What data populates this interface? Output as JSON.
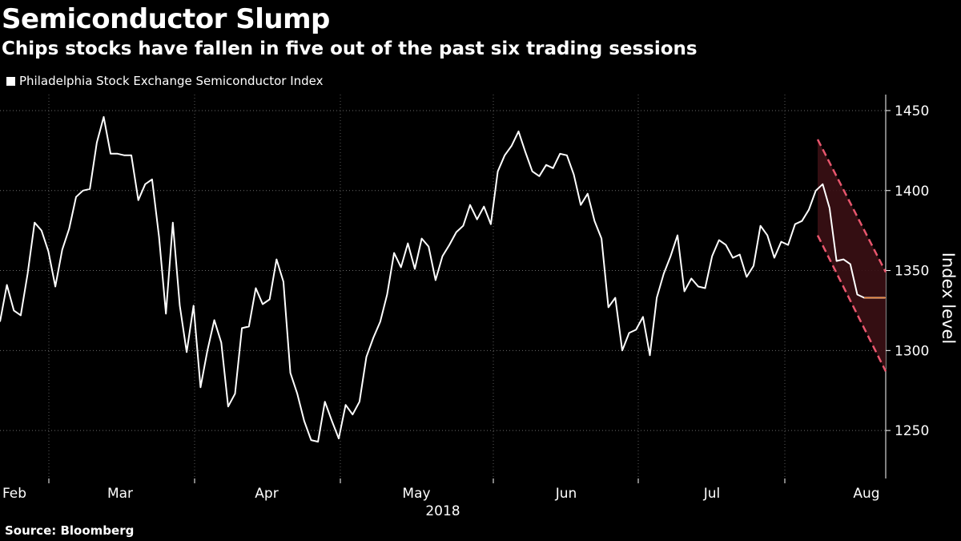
{
  "chart_data": {
    "type": "line",
    "title": "Semiconductor Slump",
    "subtitle": "Chips stocks have fallen in five out of the past six trading sessions",
    "legend": [
      "Philadelphia Stock Exchange Semiconductor Index"
    ],
    "ylabel": "Index level",
    "xlabel": "2018",
    "ylim": [
      1220,
      1460
    ],
    "yticks": [
      1250,
      1300,
      1350,
      1400,
      1450
    ],
    "xtick_labels": [
      "Feb",
      "Mar",
      "Apr",
      "May",
      "Jun",
      "Jul",
      "Aug"
    ],
    "source": "Source: Bloomberg",
    "series": [
      {
        "name": "Philadelphia Stock Exchange Semiconductor Index",
        "values": [
          1318,
          1341,
          1325,
          1322,
          1348,
          1380,
          1375,
          1362,
          1340,
          1363,
          1376,
          1396,
          1400,
          1401,
          1430,
          1446,
          1423,
          1423,
          1422,
          1422,
          1394,
          1404,
          1407,
          1371,
          1323,
          1380,
          1328,
          1299,
          1328,
          1277,
          1300,
          1319,
          1305,
          1265,
          1273,
          1314,
          1315,
          1339,
          1329,
          1332,
          1357,
          1343,
          1286,
          1273,
          1256,
          1244,
          1243,
          1268,
          1256,
          1245,
          1266,
          1260,
          1268,
          1296,
          1308,
          1318,
          1335,
          1361,
          1352,
          1367,
          1351,
          1370,
          1365,
          1344,
          1359,
          1366,
          1374,
          1378,
          1391,
          1382,
          1390,
          1379,
          1412,
          1422,
          1428,
          1437,
          1424,
          1412,
          1409,
          1416,
          1414,
          1423,
          1422,
          1410,
          1391,
          1398,
          1381,
          1370,
          1327,
          1333,
          1300,
          1311,
          1313,
          1321,
          1297,
          1333,
          1348,
          1359,
          1372,
          1337,
          1345,
          1340,
          1339,
          1359,
          1369,
          1366,
          1358,
          1360,
          1346,
          1353,
          1378,
          1372,
          1358,
          1368,
          1366,
          1379,
          1381,
          1388,
          1400,
          1404,
          1389,
          1356,
          1357,
          1354,
          1335,
          1333,
          1333,
          1333,
          1333
        ]
      }
    ],
    "annotations": [
      {
        "type": "channel",
        "label": "downtrend channel",
        "upper": [
          1432,
          1349
        ],
        "lower": [
          1372,
          1287
        ]
      }
    ]
  }
}
